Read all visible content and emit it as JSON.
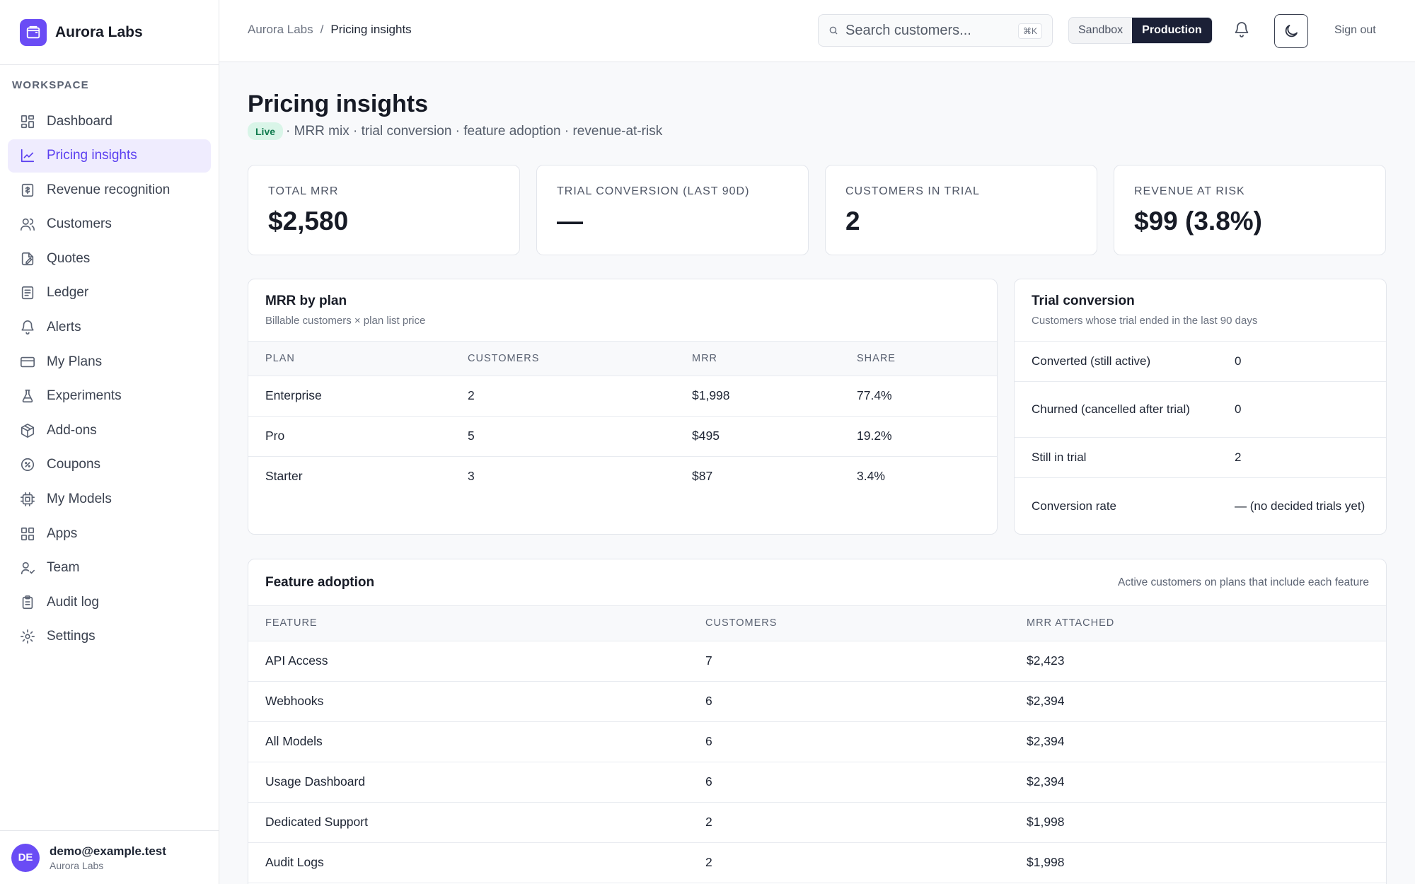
{
  "app": {
    "name": "Aurora Labs"
  },
  "sidebar": {
    "section_label": "WORKSPACE",
    "items": [
      {
        "label": "Dashboard",
        "icon": "dashboard-icon"
      },
      {
        "label": "Pricing insights",
        "icon": "chart-line-icon",
        "active": true
      },
      {
        "label": "Revenue recognition",
        "icon": "receipt-icon"
      },
      {
        "label": "Customers",
        "icon": "users-icon"
      },
      {
        "label": "Quotes",
        "icon": "quote-icon"
      },
      {
        "label": "Ledger",
        "icon": "ledger-icon"
      },
      {
        "label": "Alerts",
        "icon": "bell-icon"
      },
      {
        "label": "My Plans",
        "icon": "credit-card-icon"
      },
      {
        "label": "Experiments",
        "icon": "flask-icon"
      },
      {
        "label": "Add-ons",
        "icon": "package-icon"
      },
      {
        "label": "Coupons",
        "icon": "coupon-icon"
      },
      {
        "label": "My Models",
        "icon": "cpu-icon"
      },
      {
        "label": "Apps",
        "icon": "apps-icon"
      },
      {
        "label": "Team",
        "icon": "team-icon"
      },
      {
        "label": "Audit log",
        "icon": "clipboard-icon"
      },
      {
        "label": "Settings",
        "icon": "gear-icon"
      }
    ],
    "user": {
      "initials": "DE",
      "email": "demo@example.test",
      "org": "Aurora Labs"
    }
  },
  "topbar": {
    "breadcrumb_root": "Aurora Labs",
    "breadcrumb_sep": "/",
    "breadcrumb_current": "Pricing insights",
    "search_placeholder": "Search customers...",
    "search_shortcut": "⌘K",
    "env_sandbox": "Sandbox",
    "env_production": "Production",
    "sign_out": "Sign out"
  },
  "page": {
    "title": "Pricing insights",
    "badge": "Live",
    "subtitle": "· MRR mix · trial conversion · feature adoption · revenue-at-risk"
  },
  "kpis": [
    {
      "label": "TOTAL MRR",
      "value": "$2,580"
    },
    {
      "label": "TRIAL CONVERSION (LAST 90D)",
      "value": "—"
    },
    {
      "label": "CUSTOMERS IN TRIAL",
      "value": "2"
    },
    {
      "label": "REVENUE AT RISK",
      "value": "$99 (3.8%)"
    }
  ],
  "mrr_by_plan": {
    "title": "MRR by plan",
    "subtitle": "Billable customers × plan list price",
    "columns": [
      "PLAN",
      "CUSTOMERS",
      "MRR",
      "SHARE"
    ],
    "rows": [
      [
        "Enterprise",
        "2",
        "$1,998",
        "77.4%"
      ],
      [
        "Pro",
        "5",
        "$495",
        "19.2%"
      ],
      [
        "Starter",
        "3",
        "$87",
        "3.4%"
      ]
    ]
  },
  "trial_conversion": {
    "title": "Trial conversion",
    "subtitle": "Customers whose trial ended in the last 90 days",
    "rows": [
      {
        "label": "Converted (still active)",
        "value": "0"
      },
      {
        "label": "Churned (cancelled after trial)",
        "value": "0"
      },
      {
        "label": "Still in trial",
        "value": "2"
      },
      {
        "label": "Conversion rate",
        "value": "— (no decided trials yet)"
      }
    ]
  },
  "feature_adoption": {
    "title": "Feature adoption",
    "note": "Active customers on plans that include each feature",
    "columns": [
      "FEATURE",
      "CUSTOMERS",
      "MRR ATTACHED"
    ],
    "rows": [
      [
        "API Access",
        "7",
        "$2,423"
      ],
      [
        "Webhooks",
        "6",
        "$2,394"
      ],
      [
        "All Models",
        "6",
        "$2,394"
      ],
      [
        "Usage Dashboard",
        "6",
        "$2,394"
      ],
      [
        "Dedicated Support",
        "2",
        "$1,998"
      ],
      [
        "Audit Logs",
        "2",
        "$1,998"
      ]
    ]
  },
  "colors": {
    "accent": "#6a4cf5",
    "accent_text": "#5b3ff0",
    "live_bg": "#d9f5e8",
    "live_text": "#0f7a4d",
    "dark": "#1b2036"
  }
}
